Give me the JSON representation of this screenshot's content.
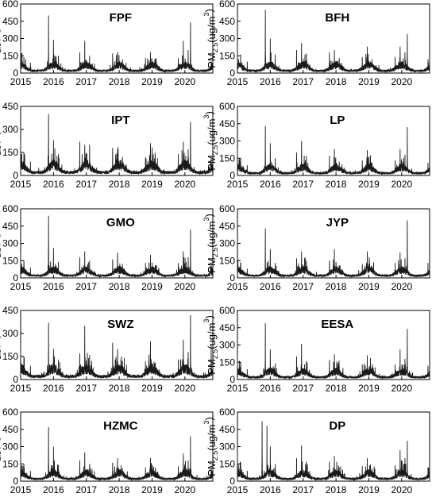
{
  "figure": {
    "y_label_main": "PM",
    "y_label_sub": "2.5",
    "y_label_tail": "(ug/m",
    "y_label_sup": "3",
    "y_label_close": ")"
  },
  "chart_data": [
    {
      "type": "line",
      "station": "FPF",
      "x_tick_labels": [
        "2015",
        "2016",
        "2017",
        "2018",
        "2019",
        "2020"
      ],
      "y_ticks": [
        0,
        150,
        300,
        450,
        600
      ],
      "ylim": [
        0,
        600
      ],
      "xlim": [
        2015.0,
        2020.85
      ],
      "peaks": [
        [
          2015.0,
          200
        ],
        [
          2015.1,
          140
        ],
        [
          2015.3,
          90
        ],
        [
          2015.85,
          500
        ],
        [
          2016.0,
          290
        ],
        [
          2016.15,
          150
        ],
        [
          2016.8,
          180
        ],
        [
          2016.95,
          280
        ],
        [
          2017.1,
          150
        ],
        [
          2017.8,
          170
        ],
        [
          2017.95,
          180
        ],
        [
          2018.1,
          120
        ],
        [
          2018.8,
          130
        ],
        [
          2018.95,
          180
        ],
        [
          2019.1,
          110
        ],
        [
          2019.8,
          130
        ],
        [
          2019.95,
          280
        ],
        [
          2020.1,
          200
        ],
        [
          2020.17,
          440
        ],
        [
          2020.8,
          100
        ]
      ]
    },
    {
      "type": "line",
      "station": "BFH",
      "x_tick_labels": [
        "2015",
        "2016",
        "2017",
        "2018",
        "2019",
        "2020"
      ],
      "y_ticks": [
        0,
        150,
        300,
        450,
        600
      ],
      "ylim": [
        0,
        600
      ],
      "xlim": [
        2015.0,
        2020.85
      ],
      "peaks": [
        [
          2015.0,
          240
        ],
        [
          2015.1,
          160
        ],
        [
          2015.3,
          100
        ],
        [
          2015.85,
          550
        ],
        [
          2016.0,
          300
        ],
        [
          2016.15,
          160
        ],
        [
          2016.8,
          200
        ],
        [
          2016.95,
          260
        ],
        [
          2017.1,
          170
        ],
        [
          2017.8,
          180
        ],
        [
          2017.95,
          200
        ],
        [
          2018.1,
          130
        ],
        [
          2018.8,
          140
        ],
        [
          2018.95,
          230
        ],
        [
          2019.1,
          120
        ],
        [
          2019.8,
          140
        ],
        [
          2019.95,
          230
        ],
        [
          2020.1,
          180
        ],
        [
          2020.17,
          340
        ],
        [
          2020.8,
          120
        ]
      ]
    },
    {
      "type": "line",
      "station": "IPT",
      "x_tick_labels": [
        "2015",
        "2016",
        "2017",
        "2018",
        "2019",
        "2020"
      ],
      "y_ticks": [
        0,
        150,
        300,
        450
      ],
      "ylim": [
        0,
        450
      ],
      "xlim": [
        2015.0,
        2020.85
      ],
      "peaks": [
        [
          2015.0,
          220
        ],
        [
          2015.1,
          150
        ],
        [
          2015.3,
          90
        ],
        [
          2015.85,
          400
        ],
        [
          2016.0,
          230
        ],
        [
          2016.15,
          140
        ],
        [
          2016.8,
          220
        ],
        [
          2016.95,
          200
        ],
        [
          2017.1,
          200
        ],
        [
          2017.8,
          180
        ],
        [
          2017.95,
          170
        ],
        [
          2018.1,
          120
        ],
        [
          2018.8,
          120
        ],
        [
          2018.95,
          210
        ],
        [
          2019.1,
          110
        ],
        [
          2019.8,
          140
        ],
        [
          2019.95,
          220
        ],
        [
          2020.1,
          170
        ],
        [
          2020.17,
          350
        ],
        [
          2020.8,
          110
        ]
      ]
    },
    {
      "type": "line",
      "station": "LP",
      "x_tick_labels": [
        "2015",
        "2016",
        "2017",
        "2018",
        "2019",
        "2020"
      ],
      "y_ticks": [
        0,
        150,
        300,
        450,
        600
      ],
      "ylim": [
        0,
        600
      ],
      "xlim": [
        2015.0,
        2020.85
      ],
      "peaks": [
        [
          2015.0,
          240
        ],
        [
          2015.1,
          150
        ],
        [
          2015.3,
          90
        ],
        [
          2015.85,
          430
        ],
        [
          2016.0,
          280
        ],
        [
          2016.15,
          150
        ],
        [
          2016.8,
          200
        ],
        [
          2016.95,
          300
        ],
        [
          2017.1,
          170
        ],
        [
          2017.8,
          170
        ],
        [
          2017.95,
          230
        ],
        [
          2018.1,
          120
        ],
        [
          2018.8,
          130
        ],
        [
          2018.95,
          220
        ],
        [
          2019.1,
          110
        ],
        [
          2019.8,
          130
        ],
        [
          2019.95,
          230
        ],
        [
          2020.1,
          180
        ],
        [
          2020.17,
          420
        ],
        [
          2020.8,
          110
        ]
      ]
    },
    {
      "type": "line",
      "station": "GMO",
      "x_tick_labels": [
        "2015",
        "2016",
        "2017",
        "2018",
        "2019",
        "2020"
      ],
      "y_ticks": [
        0,
        150,
        300,
        450,
        600
      ],
      "ylim": [
        0,
        600
      ],
      "xlim": [
        2015.0,
        2020.85
      ],
      "peaks": [
        [
          2015.0,
          230
        ],
        [
          2015.1,
          150
        ],
        [
          2015.3,
          90
        ],
        [
          2015.85,
          540
        ],
        [
          2016.0,
          260
        ],
        [
          2016.15,
          140
        ],
        [
          2016.8,
          180
        ],
        [
          2016.95,
          230
        ],
        [
          2017.1,
          150
        ],
        [
          2017.8,
          160
        ],
        [
          2017.95,
          220
        ],
        [
          2018.1,
          120
        ],
        [
          2018.8,
          130
        ],
        [
          2018.95,
          200
        ],
        [
          2019.1,
          110
        ],
        [
          2019.8,
          130
        ],
        [
          2019.95,
          230
        ],
        [
          2020.1,
          180
        ],
        [
          2020.17,
          420
        ],
        [
          2020.8,
          110
        ]
      ]
    },
    {
      "type": "line",
      "station": "JYP",
      "x_tick_labels": [
        "2015",
        "2016",
        "2017",
        "2018",
        "2019",
        "2020"
      ],
      "y_ticks": [
        0,
        150,
        300,
        450,
        600
      ],
      "ylim": [
        0,
        600
      ],
      "xlim": [
        2015.0,
        2020.85
      ],
      "peaks": [
        [
          2015.0,
          180
        ],
        [
          2015.1,
          130
        ],
        [
          2015.3,
          80
        ],
        [
          2015.85,
          430
        ],
        [
          2016.0,
          250
        ],
        [
          2016.15,
          130
        ],
        [
          2016.8,
          170
        ],
        [
          2016.95,
          230
        ],
        [
          2017.1,
          150
        ],
        [
          2017.8,
          150
        ],
        [
          2017.95,
          250
        ],
        [
          2018.1,
          110
        ],
        [
          2018.8,
          120
        ],
        [
          2018.95,
          230
        ],
        [
          2019.1,
          100
        ],
        [
          2019.8,
          130
        ],
        [
          2019.95,
          220
        ],
        [
          2020.1,
          170
        ],
        [
          2020.17,
          500
        ],
        [
          2020.8,
          130
        ]
      ]
    },
    {
      "type": "line",
      "station": "SWZ",
      "x_tick_labels": [
        "2015",
        "2016",
        "2017",
        "2018",
        "2019",
        "2020"
      ],
      "y_ticks": [
        0,
        150,
        300,
        450
      ],
      "ylim": [
        0,
        450
      ],
      "xlim": [
        2015.0,
        2020.85
      ],
      "peaks": [
        [
          2015.0,
          240
        ],
        [
          2015.1,
          150
        ],
        [
          2015.3,
          90
        ],
        [
          2015.85,
          370
        ],
        [
          2016.0,
          200
        ],
        [
          2016.15,
          130
        ],
        [
          2016.8,
          170
        ],
        [
          2016.95,
          350
        ],
        [
          2017.1,
          160
        ],
        [
          2017.8,
          240
        ],
        [
          2017.95,
          200
        ],
        [
          2018.1,
          120
        ],
        [
          2018.8,
          120
        ],
        [
          2018.95,
          250
        ],
        [
          2019.1,
          110
        ],
        [
          2019.8,
          130
        ],
        [
          2019.95,
          260
        ],
        [
          2020.1,
          180
        ],
        [
          2020.17,
          420
        ],
        [
          2020.8,
          230
        ]
      ]
    },
    {
      "type": "line",
      "station": "EESA",
      "x_tick_labels": [
        "2015",
        "2016",
        "2017",
        "2018",
        "2019",
        "2020"
      ],
      "y_ticks": [
        0,
        150,
        300,
        450,
        600
      ],
      "ylim": [
        0,
        600
      ],
      "xlim": [
        2015.0,
        2020.85
      ],
      "peaks": [
        [
          2015.0,
          220
        ],
        [
          2015.1,
          150
        ],
        [
          2015.3,
          90
        ],
        [
          2015.85,
          490
        ],
        [
          2016.0,
          260
        ],
        [
          2016.15,
          140
        ],
        [
          2016.8,
          200
        ],
        [
          2016.95,
          310
        ],
        [
          2017.1,
          160
        ],
        [
          2017.8,
          170
        ],
        [
          2017.95,
          220
        ],
        [
          2018.1,
          120
        ],
        [
          2018.8,
          130
        ],
        [
          2018.95,
          210
        ],
        [
          2019.1,
          110
        ],
        [
          2019.8,
          130
        ],
        [
          2019.95,
          260
        ],
        [
          2020.1,
          180
        ],
        [
          2020.17,
          440
        ],
        [
          2020.8,
          120
        ]
      ]
    },
    {
      "type": "line",
      "station": "HZMC",
      "x_tick_labels": [
        "2015",
        "2016",
        "2017",
        "2018",
        "2019",
        "2020"
      ],
      "y_ticks": [
        0,
        150,
        300,
        450,
        600
      ],
      "ylim": [
        0,
        600
      ],
      "xlim": [
        2015.0,
        2020.85
      ],
      "peaks": [
        [
          2015.0,
          230
        ],
        [
          2015.1,
          150
        ],
        [
          2015.3,
          90
        ],
        [
          2015.85,
          470
        ],
        [
          2016.0,
          300
        ],
        [
          2016.15,
          140
        ],
        [
          2016.8,
          180
        ],
        [
          2016.95,
          250
        ],
        [
          2017.1,
          150
        ],
        [
          2017.8,
          160
        ],
        [
          2017.95,
          200
        ],
        [
          2018.1,
          110
        ],
        [
          2018.8,
          120
        ],
        [
          2018.95,
          200
        ],
        [
          2019.1,
          100
        ],
        [
          2019.8,
          130
        ],
        [
          2019.95,
          240
        ],
        [
          2020.1,
          180
        ],
        [
          2020.17,
          390
        ],
        [
          2020.8,
          110
        ]
      ]
    },
    {
      "type": "line",
      "station": "DP",
      "x_tick_labels": [
        "2015",
        "2016",
        "2017",
        "2018",
        "2019",
        "2020"
      ],
      "y_ticks": [
        0,
        150,
        300,
        450,
        600
      ],
      "ylim": [
        0,
        600
      ],
      "xlim": [
        2015.0,
        2020.85
      ],
      "peaks": [
        [
          2015.0,
          270
        ],
        [
          2015.1,
          160
        ],
        [
          2015.3,
          90
        ],
        [
          2015.75,
          520
        ],
        [
          2015.9,
          480
        ],
        [
          2016.0,
          300
        ],
        [
          2016.15,
          150
        ],
        [
          2016.8,
          200
        ],
        [
          2016.95,
          310
        ],
        [
          2017.1,
          170
        ],
        [
          2017.8,
          170
        ],
        [
          2017.95,
          220
        ],
        [
          2018.1,
          120
        ],
        [
          2018.8,
          130
        ],
        [
          2018.95,
          200
        ],
        [
          2019.1,
          110
        ],
        [
          2019.8,
          140
        ],
        [
          2019.95,
          270
        ],
        [
          2020.1,
          200
        ],
        [
          2020.17,
          350
        ],
        [
          2020.8,
          120
        ]
      ]
    }
  ]
}
